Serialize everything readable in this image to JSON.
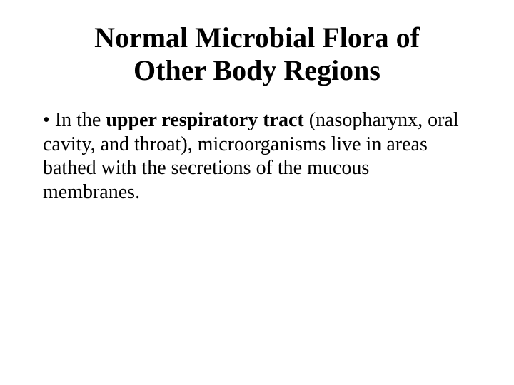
{
  "slide": {
    "title_line1": "Normal Microbial Flora of",
    "title_line2": "Other Body Regions",
    "bullet": {
      "marker": "•",
      "text_prefix": "In the ",
      "text_bold": "upper respiratory tract",
      "text_suffix": " (nasopharynx, oral cavity, and throat), microorganisms live in areas bathed with the secretions of the mucous membranes."
    }
  },
  "styling": {
    "background_color": "#ffffff",
    "text_color": "#000000",
    "title_fontsize": 40,
    "body_fontsize": 28,
    "font_family": "Times New Roman"
  }
}
